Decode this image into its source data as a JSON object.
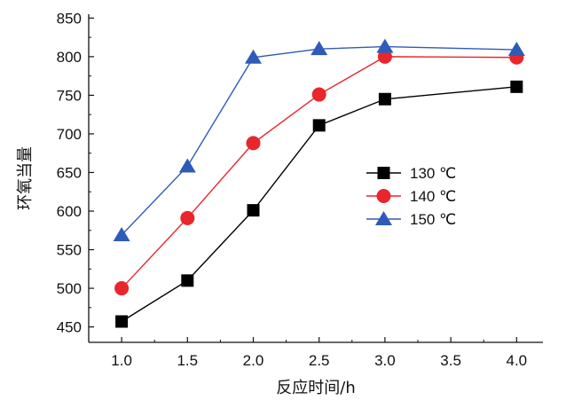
{
  "chart_data": {
    "type": "line",
    "xlabel": "反应时间/h",
    "ylabel": "环氧当量",
    "x": [
      1.0,
      1.5,
      2.0,
      2.5,
      3.0,
      3.5,
      4.0
    ],
    "x_ticks": [
      "1.0",
      "1.5",
      "2.0",
      "2.5",
      "3.0",
      "3.5",
      "4.0"
    ],
    "y_ticks": [
      "450",
      "500",
      "550",
      "600",
      "650",
      "700",
      "750",
      "800",
      "850"
    ],
    "xlim": [
      0.75,
      4.2
    ],
    "ylim": [
      430,
      855
    ],
    "grid": false,
    "legend_position": "center-right",
    "series": [
      {
        "name": "130 ℃",
        "marker": "square",
        "color": "#000000",
        "x": [
          1.0,
          1.5,
          2.0,
          2.5,
          3.0,
          4.0
        ],
        "values": [
          457,
          510,
          601,
          711,
          745,
          761
        ]
      },
      {
        "name": "140 ℃",
        "marker": "circle",
        "color": "#e8262b",
        "x": [
          1.0,
          1.5,
          2.0,
          2.5,
          3.0,
          4.0
        ],
        "values": [
          500,
          591,
          688,
          751,
          800,
          799
        ]
      },
      {
        "name": "150 ℃",
        "marker": "triangle",
        "color": "#2e5bb8",
        "x": [
          1.0,
          1.5,
          2.0,
          2.5,
          3.0,
          4.0
        ],
        "values": [
          569,
          658,
          799,
          810,
          813,
          809
        ]
      }
    ]
  }
}
